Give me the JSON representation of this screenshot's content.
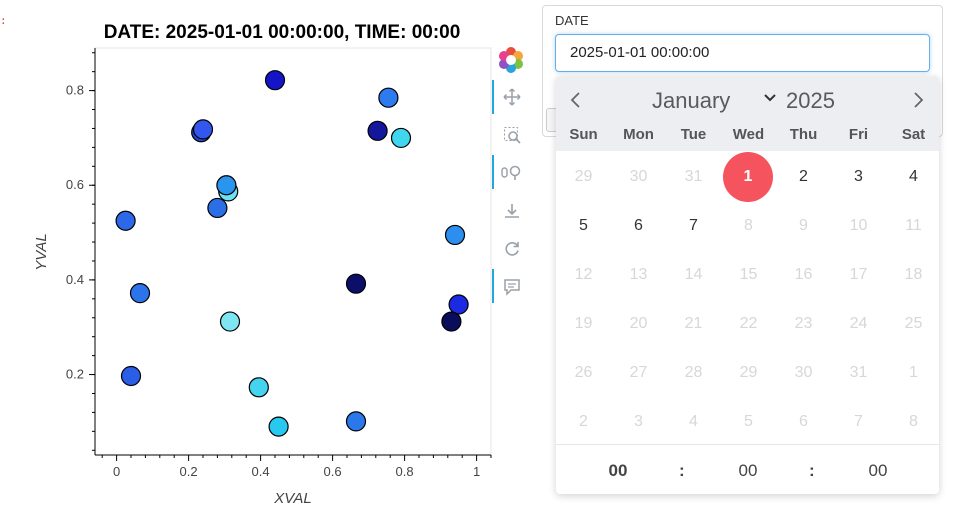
{
  "marker_text": ":",
  "chart_data": {
    "type": "scatter",
    "title": "DATE: 2025-01-01 00:00:00, TIME: 00:00",
    "xlabel": "XVAL",
    "ylabel": "YVAL",
    "xlim": [
      -0.06,
      1.04
    ],
    "ylim": [
      0.03,
      0.89
    ],
    "xticks": [
      "0",
      "0.2",
      "0.4",
      "0.6",
      "0.8",
      "1"
    ],
    "yticks": [
      "0.2",
      "0.4",
      "0.6",
      "0.8"
    ],
    "points": [
      {
        "x": 0.44,
        "y": 0.822,
        "color": "#1515c8"
      },
      {
        "x": 0.755,
        "y": 0.785,
        "color": "#2e7bef"
      },
      {
        "x": 0.235,
        "y": 0.712,
        "color": "#2147d6"
      },
      {
        "x": 0.24,
        "y": 0.718,
        "color": "#3357ee"
      },
      {
        "x": 0.725,
        "y": 0.715,
        "color": "#14169b"
      },
      {
        "x": 0.79,
        "y": 0.7,
        "color": "#3fd6ee"
      },
      {
        "x": 0.31,
        "y": 0.587,
        "color": "#6de0f2"
      },
      {
        "x": 0.305,
        "y": 0.6,
        "color": "#2a95ee"
      },
      {
        "x": 0.28,
        "y": 0.552,
        "color": "#2a6fe6"
      },
      {
        "x": 0.025,
        "y": 0.525,
        "color": "#2c68e8"
      },
      {
        "x": 0.94,
        "y": 0.495,
        "color": "#2c8ff0"
      },
      {
        "x": 0.665,
        "y": 0.392,
        "color": "#0c0f6a"
      },
      {
        "x": 0.065,
        "y": 0.372,
        "color": "#2c74ea"
      },
      {
        "x": 0.95,
        "y": 0.348,
        "color": "#1b2be2"
      },
      {
        "x": 0.315,
        "y": 0.312,
        "color": "#7ee6f2"
      },
      {
        "x": 0.93,
        "y": 0.312,
        "color": "#0a0d5a"
      },
      {
        "x": 0.04,
        "y": 0.197,
        "color": "#2a5ee6"
      },
      {
        "x": 0.395,
        "y": 0.173,
        "color": "#44d4ef"
      },
      {
        "x": 0.665,
        "y": 0.101,
        "color": "#2a78ea"
      },
      {
        "x": 0.45,
        "y": 0.09,
        "color": "#27c9ee"
      }
    ]
  },
  "toolbar": {
    "tools": [
      "pan-icon",
      "box-zoom-icon",
      "wheel-zoom-icon",
      "save-icon",
      "reset-icon",
      "hover-icon"
    ]
  },
  "widget": {
    "label": "DATE",
    "value": "2025-01-01 00:00:00"
  },
  "calendar": {
    "month": "January",
    "year": "2025",
    "weekdays": [
      "Sun",
      "Mon",
      "Tue",
      "Wed",
      "Thu",
      "Fri",
      "Sat"
    ],
    "days": [
      [
        "29",
        "30",
        "31",
        "1",
        "2",
        "3",
        "4"
      ],
      [
        "5",
        "6",
        "7",
        "8",
        "9",
        "10",
        "11"
      ],
      [
        "12",
        "13",
        "14",
        "15",
        "16",
        "17",
        "18"
      ],
      [
        "19",
        "20",
        "21",
        "22",
        "23",
        "24",
        "25"
      ],
      [
        "26",
        "27",
        "28",
        "29",
        "30",
        "31",
        "1"
      ],
      [
        "2",
        "3",
        "4",
        "5",
        "6",
        "7",
        "8"
      ]
    ],
    "active_days": [
      "1",
      "2",
      "3",
      "4",
      "5",
      "6",
      "7"
    ],
    "selected_day": "1",
    "hour": "00",
    "minute": "00",
    "second": "00",
    "separator": ":"
  }
}
